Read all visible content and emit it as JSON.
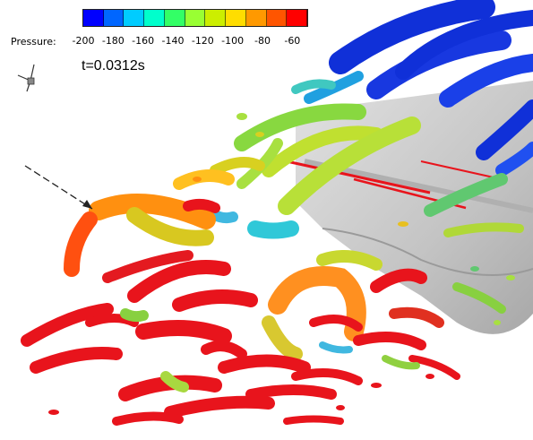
{
  "legend": {
    "title": "Pressure:",
    "ticks": [
      "-200",
      "-180",
      "-160",
      "-140",
      "-120",
      "-100",
      "-80",
      "-60"
    ],
    "range": [
      -200,
      -50
    ],
    "colormap": [
      "#0000ff",
      "#0066ff",
      "#00ccff",
      "#00ffcc",
      "#33ff66",
      "#99ff33",
      "#ccee00",
      "#ffdd00",
      "#ff9900",
      "#ff5500",
      "#ff0000"
    ]
  },
  "time": {
    "label": "t=0.0312s"
  },
  "colors": {
    "body_surface": "#bdbdbd",
    "low_pressure": "#1030d8",
    "mid_pressure": "#a8e040",
    "high_pressure": "#e8141c"
  },
  "icons": {
    "axis_triad": "axis-triad-icon"
  }
}
